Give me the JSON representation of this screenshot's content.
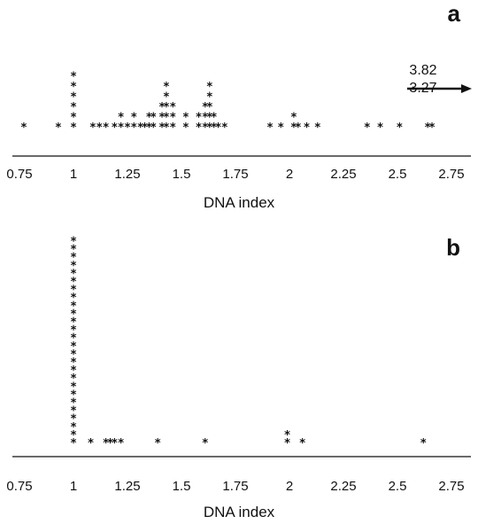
{
  "chart_data": [
    {
      "panel": "a",
      "type": "scatter",
      "marker": "*",
      "xlabel": "DNA index",
      "xlim": [
        0.75,
        2.75
      ],
      "xticks": [
        "0.75",
        "1",
        "1.25",
        "1.5",
        "1.75",
        "2",
        "2.25",
        "2.5",
        "2.75"
      ],
      "points": [
        {
          "x": 0.77,
          "n": 1
        },
        {
          "x": 0.93,
          "n": 1
        },
        {
          "x": 1.0,
          "n": 6
        },
        {
          "x": 1.09,
          "n": 1
        },
        {
          "x": 1.12,
          "n": 1
        },
        {
          "x": 1.15,
          "n": 1
        },
        {
          "x": 1.19,
          "n": 1
        },
        {
          "x": 1.22,
          "n": 2
        },
        {
          "x": 1.25,
          "n": 1
        },
        {
          "x": 1.28,
          "n": 2
        },
        {
          "x": 1.31,
          "n": 1
        },
        {
          "x": 1.33,
          "n": 1
        },
        {
          "x": 1.35,
          "n": 2
        },
        {
          "x": 1.37,
          "n": 2
        },
        {
          "x": 1.41,
          "n": 3
        },
        {
          "x": 1.43,
          "n": 5
        },
        {
          "x": 1.46,
          "n": 3
        },
        {
          "x": 1.52,
          "n": 2
        },
        {
          "x": 1.58,
          "n": 2
        },
        {
          "x": 1.61,
          "n": 3
        },
        {
          "x": 1.63,
          "n": 5
        },
        {
          "x": 1.65,
          "n": 2
        },
        {
          "x": 1.67,
          "n": 1
        },
        {
          "x": 1.7,
          "n": 1
        },
        {
          "x": 1.91,
          "n": 1
        },
        {
          "x": 1.96,
          "n": 1
        },
        {
          "x": 2.02,
          "n": 2
        },
        {
          "x": 2.04,
          "n": 1
        },
        {
          "x": 2.08,
          "n": 1
        },
        {
          "x": 2.13,
          "n": 1
        },
        {
          "x": 2.36,
          "n": 1
        },
        {
          "x": 2.42,
          "n": 1
        },
        {
          "x": 2.51,
          "n": 1
        },
        {
          "x": 2.64,
          "n": 1
        },
        {
          "x": 2.66,
          "n": 1
        }
      ],
      "annotation": {
        "values": [
          "3.82",
          "3.27"
        ]
      }
    },
    {
      "panel": "b",
      "type": "scatter",
      "marker": "*",
      "xlabel": "DNA index",
      "xlim": [
        0.75,
        2.75
      ],
      "xticks": [
        "0.75",
        "1",
        "1.25",
        "1.5",
        "1.75",
        "2",
        "2.25",
        "2.5",
        "2.75"
      ],
      "points": [
        {
          "x": 1.0,
          "n": 26
        },
        {
          "x": 1.08,
          "n": 1
        },
        {
          "x": 1.15,
          "n": 1
        },
        {
          "x": 1.17,
          "n": 1
        },
        {
          "x": 1.19,
          "n": 1
        },
        {
          "x": 1.22,
          "n": 1
        },
        {
          "x": 1.39,
          "n": 1
        },
        {
          "x": 1.61,
          "n": 1
        },
        {
          "x": 1.99,
          "n": 2
        },
        {
          "x": 2.06,
          "n": 1
        },
        {
          "x": 2.62,
          "n": 1
        }
      ]
    }
  ]
}
